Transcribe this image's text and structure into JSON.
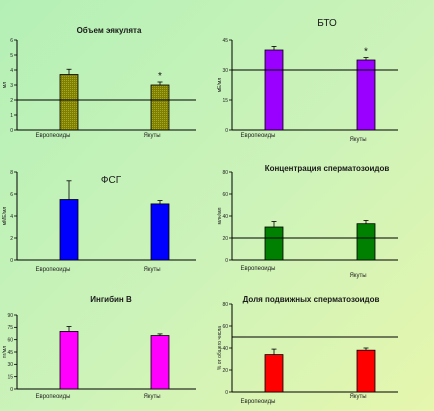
{
  "chart_data": [
    {
      "type": "bar",
      "title": "Объем эякулята",
      "ylabel": "мл",
      "ylim": [
        0,
        6
      ],
      "yticks": [
        0,
        1,
        2,
        3,
        4,
        5,
        6
      ],
      "categories": [
        "Европеоиды",
        "Якуты"
      ],
      "values": [
        3.7,
        3.0
      ],
      "errors": [
        0.35,
        0.2
      ],
      "reference_line": 2.0,
      "significance": [
        "",
        "*"
      ],
      "color": "#808000",
      "pattern": "hatch"
    },
    {
      "type": "bar",
      "title": "БТО",
      "ylabel": "мЕ/мл",
      "ylim": [
        0,
        45
      ],
      "yticks": [
        0,
        15,
        30,
        45
      ],
      "categories": [
        "Европеоиды",
        "Якуты"
      ],
      "values": [
        40,
        35
      ],
      "errors": [
        1.8,
        1.2
      ],
      "reference_line": 30,
      "significance": [
        "",
        "*"
      ],
      "color": "#9900ff"
    },
    {
      "type": "bar",
      "title": "ФСГ",
      "ylabel": "мМЕ/мл",
      "ylim": [
        0,
        8
      ],
      "yticks": [
        0,
        2,
        4,
        6,
        8
      ],
      "categories": [
        "Европеоиды",
        "Якуты"
      ],
      "values": [
        5.5,
        5.1
      ],
      "errors": [
        1.7,
        0.3
      ],
      "color": "#0000ff"
    },
    {
      "type": "bar",
      "title": "Концентрация сперматозоидов",
      "ylabel": "млн/мл",
      "ylim": [
        0,
        80
      ],
      "yticks": [
        0,
        20,
        40,
        60,
        80
      ],
      "categories": [
        "Европеоиды",
        "Якуты"
      ],
      "values": [
        30,
        33
      ],
      "errors": [
        5,
        3
      ],
      "reference_line": 20,
      "color": "#008000"
    },
    {
      "type": "bar",
      "title": "Ингибин В",
      "ylabel": "пг/мл",
      "ylim": [
        0,
        90
      ],
      "yticks": [
        0,
        15,
        30,
        45,
        60,
        75,
        90
      ],
      "categories": [
        "Европеоиды",
        "Якуты"
      ],
      "values": [
        70,
        65
      ],
      "errors": [
        6,
        2
      ],
      "color": "#ff00ff"
    },
    {
      "type": "bar",
      "title": "Доля подвижных сперматозоидов",
      "ylabel": "% от общего числа",
      "ylim": [
        0,
        80
      ],
      "yticks": [
        0,
        20,
        40,
        60,
        80
      ],
      "categories": [
        "Европеоиды",
        "Якуты"
      ],
      "values": [
        34,
        38
      ],
      "errors": [
        5,
        2
      ],
      "reference_line": 50,
      "color": "#ff0000"
    }
  ]
}
